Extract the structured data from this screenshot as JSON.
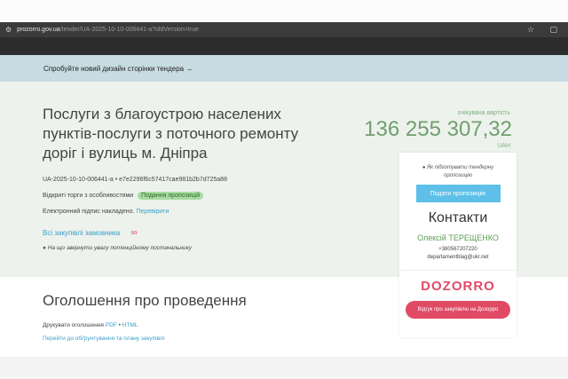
{
  "browser": {
    "host": "prozorro.gov.ua",
    "path": "/tender/UA-2025-10-10-006441-a?oldVersion=true",
    "icons": [
      "tune-icon",
      "star-icon",
      "extensions-icon"
    ]
  },
  "banner": {
    "text": "Спробуйте новий дизайн сторінки тендера",
    "arrow": "→"
  },
  "tender": {
    "title": "Послуги з благоустрою населених пунктів-послуги з поточного ремонту доріг і вулиць м. Дніпра",
    "id_line": "UA-2025-10-10-006441-a • e7e2296f6c57417cae981b2b7d725a88",
    "type": "Відкриті торги з особливостями",
    "status": "Подання пропозицій",
    "signature": "Електронний підпис накладено.",
    "verify_link": "Перевірити",
    "all_purchases_link": "Всі закупівлі замовника",
    "attention_link": "На що звернути увагу потенційному постачальнику"
  },
  "price": {
    "label": "очікувана вартість",
    "value": "136 255 307,32",
    "currency": "UAH"
  },
  "card": {
    "hint": "Як підготувати тендерну пропозицію",
    "submit": "Подати пропозицію",
    "contacts_title": "Контакти",
    "person": "Олексій ТЕРЕЩЕНКО",
    "phone": "+380567207220",
    "email": "departamentblag@ukr.net",
    "logo": "DOZORRO",
    "review": "Відгук про закупівлю на Дозорро"
  },
  "announcement": {
    "title": "Оголошення про проведення",
    "print_label": "Друкувати оголошення",
    "pdf": "PDF",
    "html": "HTML",
    "plan_link": "Перейти до обґрунтування та плану закупівлі"
  }
}
